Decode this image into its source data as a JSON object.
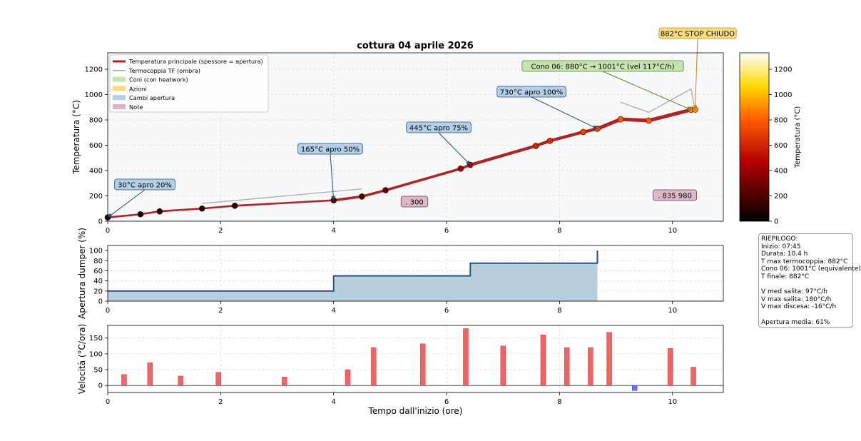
{
  "figure_title": "cottura 04 aprile 2026",
  "chart_data": [
    {
      "type": "line",
      "panel": "temperature",
      "title": "cottura 04 aprile 2026",
      "xlabel": "",
      "ylabel": "Temperatura (°C)",
      "xlim": [
        0,
        10.9
      ],
      "ylim": [
        0,
        1330
      ],
      "xticks": [
        0,
        2,
        4,
        6,
        8,
        10
      ],
      "yticks": [
        0,
        200,
        400,
        600,
        800,
        1000,
        1200
      ],
      "grid": true,
      "legend": {
        "position": "top-left",
        "entries": [
          {
            "label": "Temperatura principale (spessore = apertura)",
            "color": "#b22222",
            "kind": "line"
          },
          {
            "label": "Termocoppia TF (ombra)",
            "color": "#aaaaaa",
            "kind": "line"
          },
          {
            "label": "Coni (con heatwork)",
            "color": "#c6e3b0",
            "kind": "patch"
          },
          {
            "label": "Azioni",
            "color": "#f7dc7a",
            "kind": "patch"
          },
          {
            "label": "Cambi apertura",
            "color": "#b5cfe6",
            "kind": "patch"
          },
          {
            "label": "Note",
            "color": "#d9b3c6",
            "kind": "patch"
          }
        ]
      },
      "series": [
        {
          "name": "Temperatura principale (spessore = apertura)",
          "color": "#b22222",
          "x": [
            0,
            0.58,
            0.92,
            1.67,
            2.25,
            4.0,
            4.5,
            4.92,
            6.25,
            6.42,
            7.58,
            7.83,
            8.42,
            8.67,
            9.08,
            9.58,
            10.33,
            10.4
          ],
          "y": [
            30,
            55,
            78,
            100,
            122,
            165,
            195,
            245,
            415,
            445,
            595,
            635,
            705,
            730,
            805,
            795,
            880,
            882
          ]
        },
        {
          "name": "Termocoppia TF (ombra)",
          "color": "#aaaaaa",
          "segments": [
            {
              "x": [
                1.67,
                4.5
              ],
              "y": [
                140,
                255
              ]
            },
            {
              "x": [
                9.08,
                9.58,
                10.33,
                10.4
              ],
              "y": [
                940,
                860,
                1045,
                882
              ]
            }
          ]
        }
      ],
      "annotations": [
        {
          "text": "30°C apro 20%",
          "x": 0,
          "y": 30,
          "kind": "apertura"
        },
        {
          "text": "165°C apro 50%",
          "x": 4.0,
          "y": 165,
          "kind": "apertura"
        },
        {
          "text": "445°C apro 75%",
          "x": 6.42,
          "y": 445,
          "kind": "apertura"
        },
        {
          "text": "730°C apro 100%",
          "x": 8.67,
          "y": 730,
          "kind": "apertura"
        },
        {
          "text": "Cono 06: 880°C → 1001°C (vel 117°C/h)",
          "x": 10.33,
          "y": 880,
          "kind": "cono"
        },
        {
          "text": "882°C STOP CHIUDO",
          "x": 10.4,
          "y": 882,
          "kind": "azione"
        },
        {
          "text": ". 300",
          "x": 5.55,
          "y": 150,
          "kind": "nota"
        },
        {
          "text": ". 835 980",
          "x": 10.0,
          "y": 200,
          "kind": "nota"
        }
      ],
      "colorbar": {
        "label": "Temperatura (°C)",
        "range": [
          0,
          1330
        ],
        "ticks": [
          0,
          200,
          400,
          600,
          800,
          1000,
          1200
        ]
      }
    },
    {
      "type": "area",
      "panel": "damper",
      "xlabel": "",
      "ylabel": "Apertura dumper (%)",
      "xlim": [
        0,
        10.9
      ],
      "ylim": [
        0,
        110
      ],
      "xticks": [
        0,
        2,
        4,
        6,
        8,
        10
      ],
      "yticks": [
        0,
        20,
        40,
        60,
        80,
        100
      ],
      "grid": true,
      "series": [
        {
          "name": "",
          "color": "#1f4e79",
          "x": [
            0,
            4.0,
            6.42,
            8.67
          ],
          "y": [
            20,
            50,
            75,
            100
          ]
        }
      ]
    },
    {
      "type": "bar",
      "panel": "rate",
      "xlabel": "Tempo dall'inizio (ore)",
      "ylabel": "Velocità (°C/ora)",
      "xlim": [
        0,
        10.9
      ],
      "ylim": [
        -22,
        190
      ],
      "xticks": [
        0,
        2,
        4,
        6,
        8,
        10
      ],
      "yticks": [
        0,
        50,
        100,
        150
      ],
      "grid": true,
      "positive_color": "#f26363",
      "negative_color": "#6f6fe8",
      "x": [
        0.29,
        0.75,
        1.29,
        1.96,
        3.13,
        4.25,
        4.71,
        5.58,
        6.34,
        7.0,
        7.71,
        8.13,
        8.55,
        8.88,
        9.33,
        9.96,
        10.37
      ],
      "values": [
        35,
        72,
        30,
        42,
        27,
        50,
        120,
        132,
        180,
        125,
        160,
        120,
        120,
        168,
        -16,
        117,
        58
      ]
    }
  ],
  "summary": {
    "lines": [
      "RIEPILOGO:",
      "Inizio: 07:45",
      "Durata: 10.4 h",
      "T max termocoppia: 882°C",
      "Cono 06: 1001°C (equivalente)",
      "T finale: 882°C",
      "",
      "V med salita: 97°C/h",
      "V max salita: 180°C/h",
      "V max discesa: -16°C/h",
      "",
      "Apertura media: 61%"
    ]
  },
  "colors": {
    "main_line": "#b22222",
    "shadow_line": "#aaaaaa",
    "plot_bg": "#f7f8fa",
    "damper_fill": "#b8cedd",
    "damper_line": "#1f4e79",
    "annot_apertura_bg": "#b5cfe6",
    "annot_apertura_border": "#1f4e79",
    "annot_cono_bg": "#c6e3b0",
    "annot_cono_border": "#4f8a2b",
    "annot_azione_bg": "#f9dc7c",
    "annot_azione_border": "#c8841a",
    "annot_nota_bg": "#ddb8c9",
    "annot_nota_border": "#6b3a52"
  }
}
